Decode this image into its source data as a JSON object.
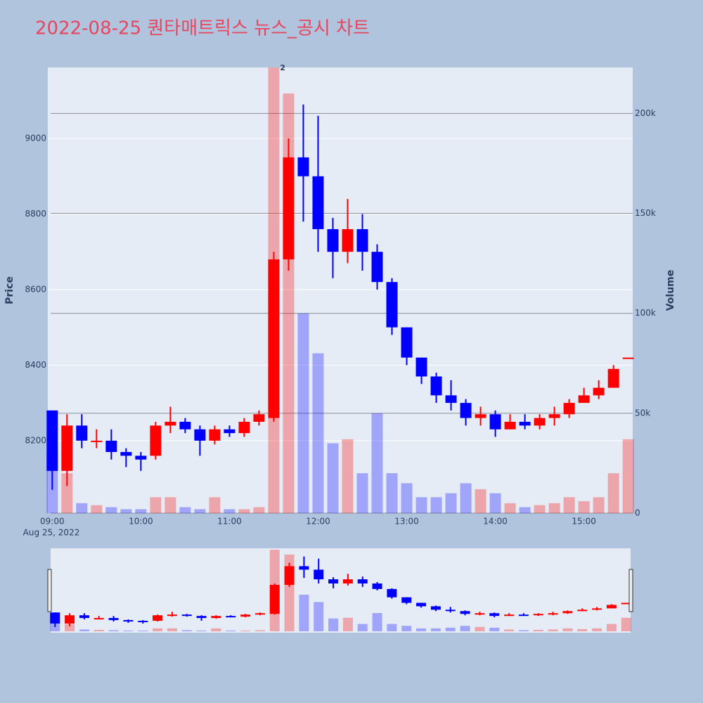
{
  "chart_data": {
    "type": "candlestick",
    "title": "2022-08-25 퀀타매트릭스 뉴스_공시 차트",
    "x": [
      "09:00",
      "09:10",
      "09:20",
      "09:30",
      "09:40",
      "09:50",
      "10:00",
      "10:10",
      "10:20",
      "10:30",
      "10:40",
      "10:50",
      "11:00",
      "11:10",
      "11:20",
      "11:30",
      "11:40",
      "11:50",
      "12:00",
      "12:10",
      "12:20",
      "12:30",
      "12:40",
      "12:50",
      "13:00",
      "13:10",
      "13:20",
      "13:30",
      "13:40",
      "13:50",
      "14:00",
      "14:10",
      "14:20",
      "14:30",
      "14:40",
      "14:50",
      "15:00",
      "15:10",
      "15:20",
      "15:30"
    ],
    "open": [
      8280,
      8120,
      8240,
      8200,
      8200,
      8170,
      8160,
      8160,
      8240,
      8250,
      8230,
      8200,
      8230,
      8220,
      8250,
      8260,
      8680,
      8950,
      8900,
      8760,
      8700,
      8760,
      8700,
      8620,
      8500,
      8420,
      8370,
      8320,
      8300,
      8260,
      8270,
      8230,
      8250,
      8240,
      8260,
      8270,
      8300,
      8320,
      8340,
      8420
    ],
    "high": [
      8280,
      8270,
      8270,
      8230,
      8230,
      8180,
      8170,
      8250,
      8290,
      8260,
      8240,
      8240,
      8240,
      8260,
      8280,
      8700,
      9000,
      9090,
      9060,
      8790,
      8840,
      8800,
      8720,
      8630,
      8500,
      8420,
      8380,
      8360,
      8310,
      8290,
      8280,
      8270,
      8270,
      8270,
      8290,
      8310,
      8340,
      8360,
      8400,
      8420
    ],
    "low": [
      8070,
      8080,
      8180,
      8180,
      8150,
      8130,
      8120,
      8150,
      8220,
      8220,
      8160,
      8190,
      8210,
      8210,
      8240,
      8250,
      8650,
      8780,
      8700,
      8630,
      8670,
      8650,
      8600,
      8480,
      8400,
      8350,
      8300,
      8280,
      8240,
      8240,
      8210,
      8230,
      8230,
      8230,
      8240,
      8260,
      8300,
      8310,
      8340,
      8420
    ],
    "close": [
      8120,
      8240,
      8200,
      8200,
      8170,
      8160,
      8150,
      8240,
      8250,
      8230,
      8200,
      8230,
      8220,
      8250,
      8270,
      8680,
      8950,
      8900,
      8760,
      8700,
      8760,
      8700,
      8620,
      8500,
      8420,
      8370,
      8320,
      8300,
      8260,
      8270,
      8230,
      8250,
      8240,
      8260,
      8270,
      8300,
      8320,
      8340,
      8390,
      8420
    ],
    "volume": [
      30000,
      20000,
      5000,
      4000,
      3000,
      2000,
      2000,
      8000,
      8000,
      3000,
      2000,
      8000,
      2000,
      2000,
      3000,
      223000,
      210000,
      100000,
      80000,
      35000,
      37000,
      20000,
      50000,
      20000,
      15000,
      8000,
      8000,
      10000,
      15000,
      12000,
      10000,
      5000,
      3000,
      4000,
      5000,
      8000,
      6000,
      8000,
      20000,
      37000
    ],
    "increasing_color": "#ff0000",
    "decreasing_color": "#0000ff",
    "xlim": [
      "08:57",
      "15:33"
    ],
    "xticks": [
      "09:00",
      "10:00",
      "11:00",
      "12:00",
      "13:00",
      "14:00",
      "15:00"
    ],
    "x_date_label": "Aug 25, 2022",
    "ylabel": "Price",
    "y2label": "Volume",
    "ylim": [
      8008,
      9188
    ],
    "yticks": [
      8200,
      8400,
      8600,
      8800,
      9000
    ],
    "y2lim": [
      0,
      223000
    ],
    "y2ticks": [
      0,
      {
        "value": 50000,
        "label": "50k"
      },
      {
        "value": 100000,
        "label": "100k"
      },
      {
        "value": 150000,
        "label": "150k"
      },
      {
        "value": 200000,
        "label": "200k"
      }
    ],
    "annotations": [
      {
        "x": "11:36",
        "text": "2"
      }
    ],
    "rangeslider": true
  }
}
